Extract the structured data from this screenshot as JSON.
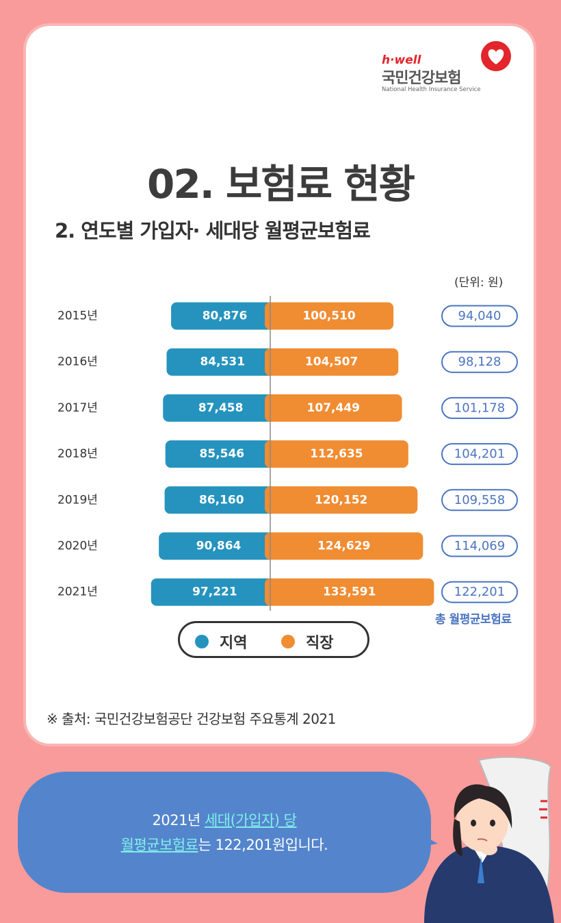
{
  "logo": {
    "brand": "h·well",
    "name_kr": "국민건강보험",
    "name_en": "National Health Insurance Service"
  },
  "title": "02. 보험료 현황",
  "subtitle": "2. 연도별 가입자· 세대당 월평균보험료",
  "unit": "(단위: 원)",
  "total_label": "총 월평균보험료",
  "legend": {
    "regional": "지역",
    "workplace": "직장"
  },
  "source": "※ 출처: 국민건강보험공단 건강보험 주요통계 2021",
  "bubble": {
    "line1_prefix": "2021년 ",
    "line1_highlight": "세대(가입자) 당",
    "line2_highlight": "월평균보험료",
    "line2_suffix": "는 122,201원입니다."
  },
  "colors": {
    "background": "#f99b9b",
    "regional": "#2593be",
    "workplace": "#f08c32",
    "total_border": "#4a74c0",
    "bubble": "#5485cc"
  },
  "chart_data": {
    "type": "bar",
    "orientation": "diverging-horizontal",
    "categories": [
      "2015년",
      "2016년",
      "2017년",
      "2018년",
      "2019년",
      "2020년",
      "2021년"
    ],
    "series": [
      {
        "name": "지역",
        "values": [
          80876,
          84531,
          87458,
          85546,
          86160,
          90864,
          97221
        ],
        "labels": [
          "80,876",
          "84,531",
          "87,458",
          "85,546",
          "86,160",
          "90,864",
          "97,221"
        ]
      },
      {
        "name": "직장",
        "values": [
          100510,
          104507,
          107449,
          112635,
          120152,
          124629,
          133591
        ],
        "labels": [
          "100,510",
          "104,507",
          "107,449",
          "112,635",
          "120,152",
          "124,629",
          "133,591"
        ]
      },
      {
        "name": "총 월평균보험료",
        "values": [
          94040,
          98128,
          101178,
          104201,
          109558,
          114069,
          122201
        ],
        "labels": [
          "94,040",
          "98,128",
          "101,178",
          "104,201",
          "109,558",
          "114,069",
          "122,201"
        ]
      }
    ]
  }
}
